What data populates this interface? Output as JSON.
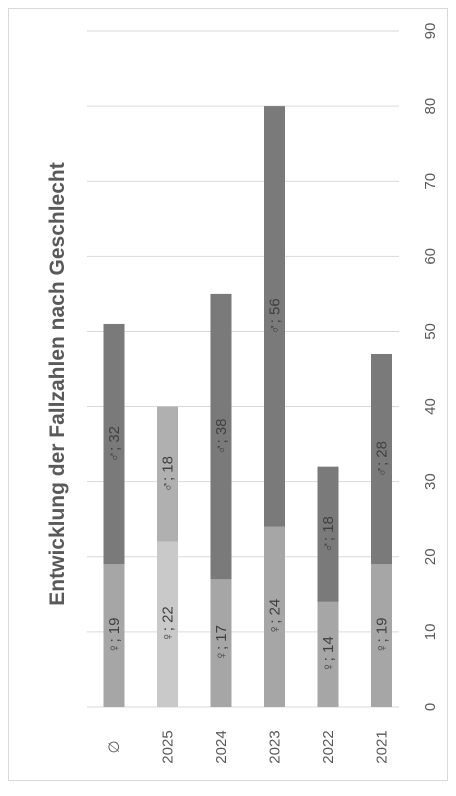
{
  "chart_data": {
    "type": "bar",
    "stacked": true,
    "orientation": "rotated-90-clockwise",
    "title": "Entwicklung der Fallzahlen nach Geschlecht",
    "categories": [
      "∅",
      "2025",
      "2024",
      "2023",
      "2022",
      "2021"
    ],
    "series": [
      {
        "labels": [
          "♀; 19",
          "♀; 22",
          "♀; 17",
          "♀; 24",
          "♀; 14",
          "♀; 19"
        ],
        "values": [
          19,
          22,
          17,
          24,
          14,
          19
        ]
      },
      {
        "labels": [
          "♂; 32",
          "♂; 18",
          "♂; 38",
          "♂; 56",
          "♂; 18",
          "♂; 28"
        ],
        "values": [
          32,
          18,
          38,
          56,
          18,
          28
        ]
      }
    ],
    "value_axis": {
      "min": 0,
      "max": 90,
      "major_unit": 10,
      "ticks": [
        "0",
        "10",
        "20",
        "30",
        "40",
        "50",
        "60",
        "70",
        "80",
        "90"
      ]
    },
    "gridlines": true,
    "legend": "none",
    "colors": {
      "female": [
        "#a6a6a6",
        "#c9c9c9",
        "#a6a6a6",
        "#a6a6a6",
        "#a6a6a6",
        "#a6a6a6"
      ],
      "male": [
        "#7a7a7a",
        "#b0b0b0",
        "#7a7a7a",
        "#7a7a7a",
        "#7a7a7a",
        "#7a7a7a"
      ],
      "gridline": "#d9d9d9",
      "label_text": "#404040"
    }
  }
}
